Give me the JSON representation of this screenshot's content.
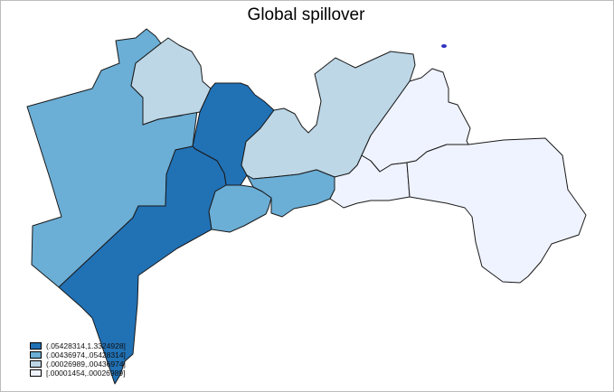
{
  "title": "Global spillover",
  "colors": {
    "class_1": "#2171b5",
    "class_2": "#6baed6",
    "class_3": "#bdd7e7",
    "class_4": "#eff3ff",
    "outline": "#1a1a1a",
    "marker": "#3030c0"
  },
  "legend": {
    "items": [
      {
        "label": "(.05428314,1.3324928]",
        "color": "#2171b5"
      },
      {
        "label": "(.00436974,.05428314]",
        "color": "#6baed6"
      },
      {
        "label": "(.00026989,.00436974]",
        "color": "#bdd7e7"
      },
      {
        "label": "[.00001454,.00026989]",
        "color": "#eff3ff"
      }
    ]
  }
}
